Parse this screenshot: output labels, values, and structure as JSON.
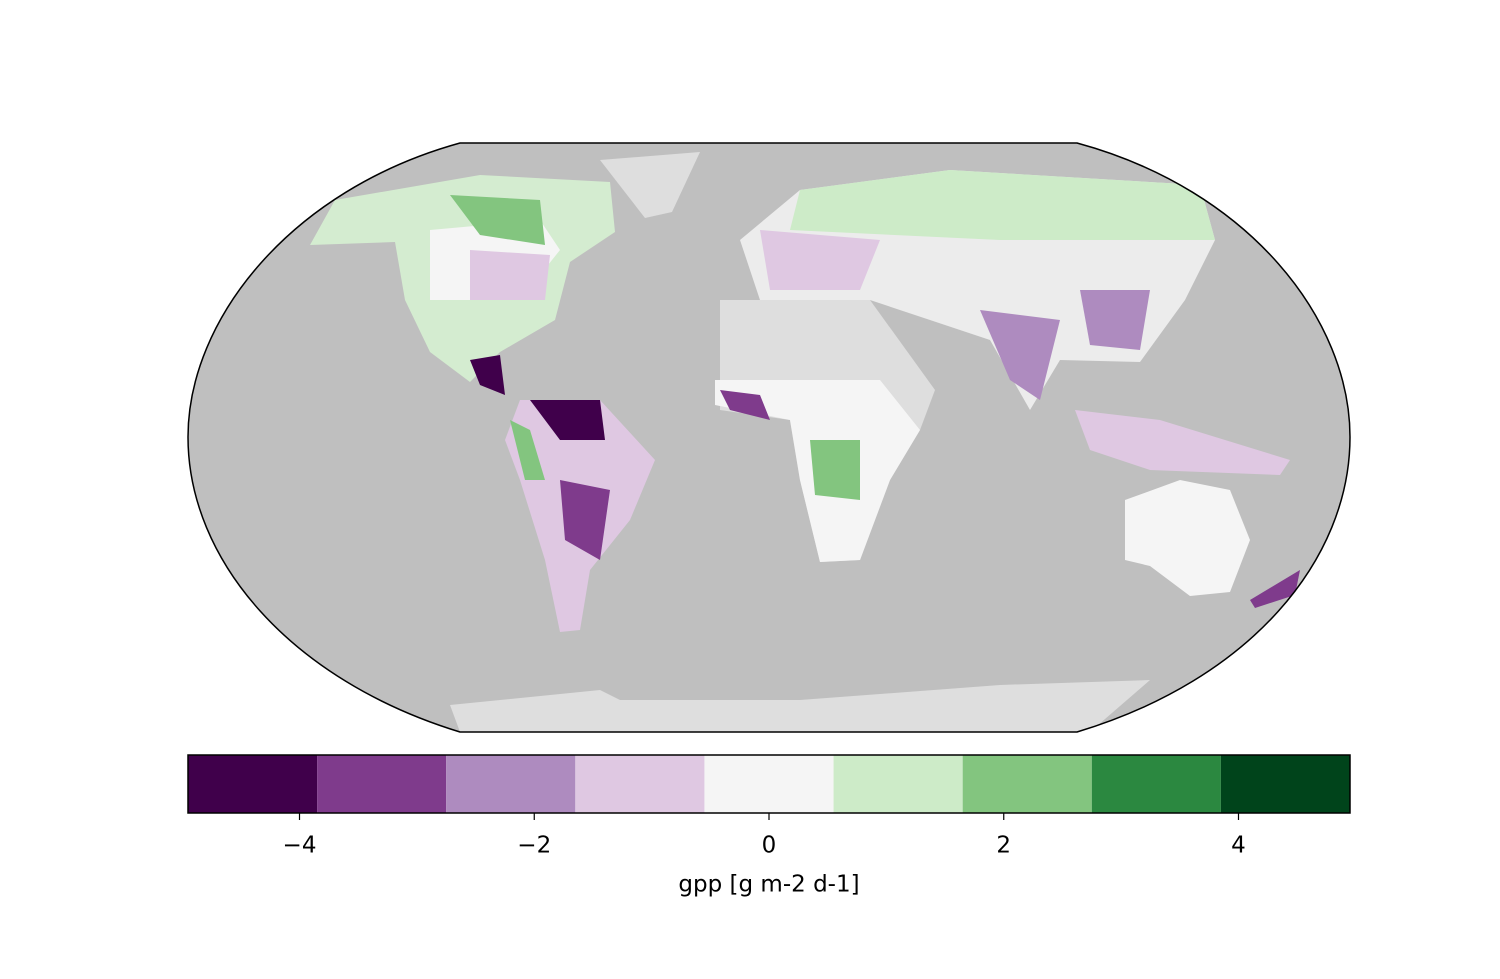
{
  "chart_data": {
    "type": "colormap",
    "xlabel": "gpp [g m-2 d-1]",
    "xlim": [
      -4.95,
      4.95
    ],
    "levels": [
      -4.95,
      -3.85,
      -2.75,
      -1.65,
      -0.55,
      0.55,
      1.65,
      2.75,
      3.85,
      4.95
    ],
    "colors": [
      "#40004b",
      "#7f3b8c",
      "#ae8bbf",
      "#dfc8e2",
      "#f5f5f5",
      "#cdebc8",
      "#83c57f",
      "#2b8840",
      "#00441b"
    ],
    "xticks": [
      {
        "value": -4,
        "label": "−4"
      },
      {
        "value": -2,
        "label": "−2"
      },
      0,
      2,
      4
    ]
  }
}
